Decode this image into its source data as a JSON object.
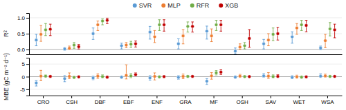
{
  "chart_data": [
    {
      "type": "scatter",
      "ylabel": "R²",
      "categories": [
        "CRO",
        "CSH",
        "DBF",
        "EBF",
        "ENF",
        "GRA",
        "MF",
        "OSH",
        "SAV",
        "WET",
        "WSA"
      ],
      "tick_labels": "y",
      "ylim": [
        -0.15,
        1.15
      ],
      "yticks": [
        {
          "value": 0.0,
          "label": "0.0"
        },
        0.5,
        {
          "value": 1.0,
          "label": "1.0"
        }
      ],
      "grid": true,
      "legend": "top",
      "series": [
        {
          "name": "SVR",
          "color": "#5b9bd5",
          "values": [
            0.3,
            0.02,
            0.5,
            0.12,
            0.55,
            0.18,
            0.58,
            -0.05,
            0.18,
            0.4,
            0.05
          ],
          "err_low": [
            0.18,
            0.04,
            0.18,
            0.1,
            0.22,
            0.16,
            0.25,
            0.09,
            0.16,
            0.2,
            0.06
          ],
          "err_high": [
            0.18,
            0.04,
            0.18,
            0.08,
            0.18,
            0.16,
            0.16,
            0.1,
            0.14,
            0.16,
            0.06
          ]
        },
        {
          "name": "MLP",
          "color": "#ed7d31",
          "values": [
            0.48,
            0.04,
            0.78,
            0.14,
            0.4,
            0.43,
            0.43,
            0.08,
            0.3,
            0.68,
            0.28
          ],
          "err_low": [
            0.22,
            0.04,
            0.18,
            0.08,
            0.18,
            0.25,
            0.18,
            0.08,
            0.18,
            0.2,
            0.22
          ],
          "err_high": [
            0.28,
            0.07,
            0.12,
            0.08,
            0.2,
            0.2,
            0.22,
            0.1,
            0.2,
            0.14,
            0.2
          ]
        },
        {
          "name": "RFR",
          "color": "#70ad47",
          "values": [
            0.62,
            0.14,
            0.9,
            0.17,
            0.78,
            0.73,
            0.78,
            0.12,
            0.48,
            0.78,
            0.65
          ],
          "err_low": [
            0.18,
            0.1,
            0.12,
            0.1,
            0.18,
            0.18,
            0.18,
            0.1,
            0.2,
            0.18,
            0.22
          ],
          "err_high": [
            0.2,
            0.08,
            0.07,
            0.09,
            0.16,
            0.14,
            0.14,
            0.1,
            0.2,
            0.14,
            0.2
          ]
        },
        {
          "name": "XGB",
          "color": "#c00000",
          "values": [
            0.64,
            0.09,
            0.92,
            0.18,
            0.78,
            0.73,
            0.78,
            0.35,
            0.5,
            0.76,
            0.62
          ],
          "err_low": [
            0.2,
            0.07,
            0.1,
            0.1,
            0.2,
            0.18,
            0.2,
            0.28,
            0.2,
            0.2,
            0.25
          ],
          "err_high": [
            0.16,
            0.07,
            0.07,
            0.09,
            0.16,
            0.14,
            0.14,
            0.28,
            0.2,
            0.16,
            0.18
          ]
        }
      ]
    },
    {
      "type": "scatter",
      "ylabel": "MBE (gC m⁻² d⁻¹)",
      "categories": [
        "CRO",
        "CSH",
        "DBF",
        "EBF",
        "ENF",
        "GRA",
        "MF",
        "OSH",
        "SAV",
        "WET",
        "WSA"
      ],
      "ylim": [
        -7.5,
        7.5
      ],
      "yticks": [
        -5,
        0,
        5
      ],
      "grid": true,
      "series": [
        {
          "color": "#5b9bd5",
          "values": [
            -2.5,
            -0.8,
            -0.5,
            -0.2,
            -0.5,
            -0.3,
            -1.8,
            -0.2,
            0.3,
            -0.3,
            0.2
          ],
          "err_low": [
            1.2,
            1.2,
            0.7,
            0.4,
            0.9,
            0.7,
            1.3,
            0.4,
            0.5,
            0.5,
            0.5
          ],
          "err_high": [
            0.9,
            1.2,
            0.7,
            0.4,
            0.9,
            0.7,
            1.0,
            0.5,
            0.9,
            0.7,
            0.9
          ]
        },
        {
          "color": "#ed7d31",
          "values": [
            0.2,
            0.1,
            0.2,
            0.5,
            0.1,
            0.1,
            0.3,
            0.2,
            0.2,
            -0.1,
            0.3
          ],
          "err_low": [
            1.8,
            0.9,
            0.9,
            1.4,
            1.4,
            0.9,
            1.3,
            0.5,
            0.9,
            0.5,
            0.5
          ],
          "err_high": [
            2.3,
            1.4,
            0.9,
            4.2,
            1.4,
            0.9,
            1.3,
            0.7,
            1.4,
            0.7,
            0.7
          ]
        },
        {
          "color": "#70ad47",
          "values": [
            0.2,
            -0.3,
            0.0,
            0.3,
            -0.1,
            0.1,
            1.5,
            0.0,
            0.0,
            -0.2,
            0.1
          ],
          "err_low": [
            0.4,
            0.4,
            0.4,
            0.7,
            0.4,
            0.4,
            0.8,
            0.3,
            0.4,
            0.4,
            0.4
          ],
          "err_high": [
            0.4,
            0.4,
            0.7,
            0.9,
            0.4,
            0.4,
            0.9,
            0.4,
            0.7,
            0.4,
            0.4
          ]
        },
        {
          "color": "#c00000",
          "values": [
            0.1,
            -0.1,
            -0.2,
            0.8,
            0.0,
            0.1,
            1.8,
            0.0,
            0.1,
            -0.1,
            0.1
          ],
          "err_low": [
            0.4,
            0.4,
            0.4,
            0.4,
            0.4,
            0.4,
            0.9,
            0.2,
            0.4,
            0.4,
            0.3
          ],
          "err_high": [
            0.4,
            0.4,
            0.4,
            0.7,
            0.4,
            0.4,
            0.9,
            0.2,
            0.7,
            0.4,
            0.4
          ]
        }
      ]
    }
  ]
}
